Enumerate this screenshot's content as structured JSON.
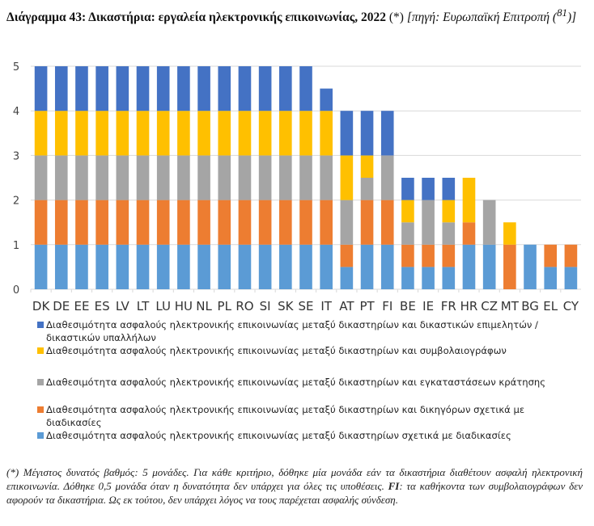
{
  "title": {
    "main": "Διάγραμμα 43: Δικαστήρια: εργαλεία ηλεκτρονικής επικοινωνίας, 2022",
    "marker": " (*) ",
    "source_prefix": "[πηγή: Ευρωπαϊκή Επιτροπή (",
    "source_ref": "81",
    "source_suffix": ")]"
  },
  "chart_data": {
    "type": "bar",
    "stacked": true,
    "categories": [
      "DK",
      "DE",
      "EE",
      "ES",
      "LV",
      "LT",
      "LU",
      "HU",
      "NL",
      "PL",
      "RO",
      "SI",
      "SK",
      "SE",
      "IT",
      "AT",
      "PT",
      "FI",
      "BE",
      "IE",
      "FR",
      "HR",
      "CZ",
      "MT",
      "BG",
      "EL",
      "CY"
    ],
    "ylim": [
      0,
      5
    ],
    "yticks": [
      "0",
      "1",
      "2",
      "3",
      "4",
      "5"
    ],
    "grid": true,
    "legend_position": "bottom",
    "series": [
      {
        "name": "Διαθεσιμότητα ασφαλούς ηλεκτρονικής επικοινωνίας μεταξύ δικαστηρίων σχετικά με διαδικασίες",
        "color": "#5B9BD5",
        "values": [
          1,
          1,
          1,
          1,
          1,
          1,
          1,
          1,
          1,
          1,
          1,
          1,
          1,
          1,
          1,
          0.5,
          1,
          1,
          0.5,
          0.5,
          0.5,
          1,
          1,
          0,
          1,
          0.5,
          0.5
        ]
      },
      {
        "name": "Διαθεσιμότητα ασφαλούς ηλεκτρονικής επικοινωνίας μεταξύ δικαστηρίων και δικηγόρων σχετικά με διαδικασίες",
        "color": "#ED7D31",
        "values": [
          1,
          1,
          1,
          1,
          1,
          1,
          1,
          1,
          1,
          1,
          1,
          1,
          1,
          1,
          1,
          0.5,
          1,
          1,
          0.5,
          0.5,
          0.5,
          0.5,
          0,
          1,
          0,
          0.5,
          0.5
        ]
      },
      {
        "name": "Διαθεσιμότητα ασφαλούς ηλεκτρονικής επικοινωνίας μεταξύ δικαστηρίων και εγκαταστάσεων κράτησης",
        "color": "#A5A5A5",
        "values": [
          1,
          1,
          1,
          1,
          1,
          1,
          1,
          1,
          1,
          1,
          1,
          1,
          1,
          1,
          1,
          1,
          0.5,
          1,
          0.5,
          1,
          0.5,
          0,
          1,
          0,
          0,
          0,
          0
        ]
      },
      {
        "name": "Διαθεσιμότητα ασφαλούς ηλεκτρονικής επικοινωνίας μεταξύ δικαστηρίων και συμβολαιογράφων",
        "color": "#FFC000",
        "values": [
          1,
          1,
          1,
          1,
          1,
          1,
          1,
          1,
          1,
          1,
          1,
          1,
          1,
          1,
          1,
          1,
          0.5,
          0,
          0.5,
          0,
          0.5,
          1,
          0,
          0.5,
          0,
          0,
          0
        ]
      },
      {
        "name": "Διαθεσιμότητα ασφαλούς ηλεκτρονικής επικοινωνίας μεταξύ δικαστηρίων και δικαστικών επιμελητών / δικαστικών υπαλλήλων",
        "color": "#4472C4",
        "values": [
          1,
          1,
          1,
          1,
          1,
          1,
          1,
          1,
          1,
          1,
          1,
          1,
          1,
          1,
          0.5,
          1,
          1,
          1,
          0.5,
          0.5,
          0.5,
          0,
          0,
          0,
          0,
          0,
          0
        ]
      }
    ]
  },
  "footnote": {
    "part1": "(*) Μέγιστος δυνατός βαθμός: 5 μονάδες. Για κάθε κριτήριο, δόθηκε μία μονάδα εάν τα δικαστήρια διαθέτουν ασφαλή ηλεκτρονική επικοινωνία. Δόθηκε 0,5 μονάδα όταν η δυνατότητα δεν υπάρχει για όλες τις υποθέσεις. ",
    "bold": "FI",
    "part2": ": τα καθήκοντα των συμβολαιογράφων δεν αφορούν τα δικαστήρια. Ως εκ τούτου, δεν υπάρχει λόγος να τους παρέχεται ασφαλής σύνδεση."
  }
}
